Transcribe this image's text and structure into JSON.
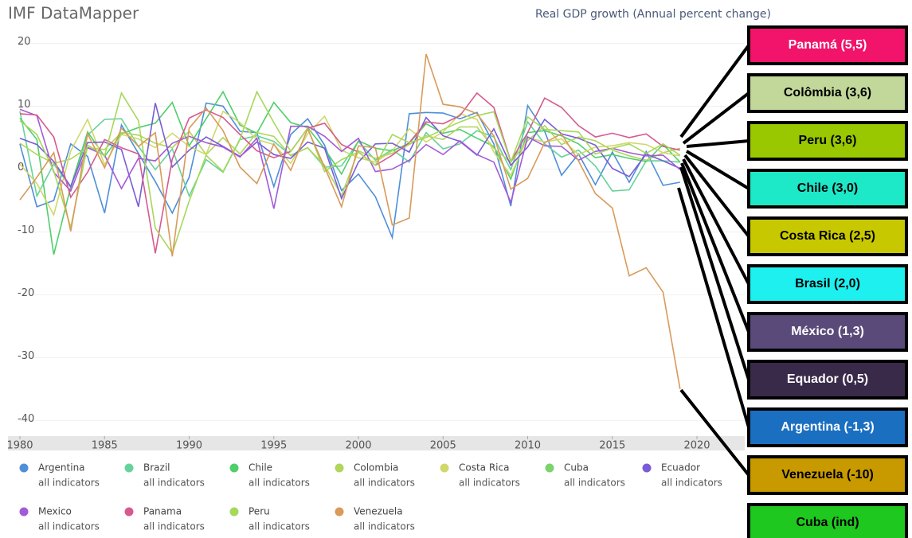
{
  "chart_data": {
    "type": "line",
    "title": "IMF DataMapper",
    "subtitle": "Real GDP growth (Annual percent change)",
    "legend_sublabel": "all indicators",
    "x": [
      1980,
      1981,
      1982,
      1983,
      1984,
      1985,
      1986,
      1987,
      1988,
      1989,
      1990,
      1991,
      1992,
      1993,
      1994,
      1995,
      1996,
      1997,
      1998,
      1999,
      2000,
      2001,
      2002,
      2003,
      2004,
      2005,
      2006,
      2007,
      2008,
      2009,
      2010,
      2011,
      2012,
      2013,
      2014,
      2015,
      2016,
      2017,
      2018,
      2019
    ],
    "xlim": [
      1980,
      2023
    ],
    "xticks": [
      1980,
      1985,
      1990,
      1995,
      2000,
      2005,
      2010,
      2015,
      2020
    ],
    "ylim": [
      -42.5,
      21.2
    ],
    "yticks": [
      20,
      10,
      0,
      -10,
      -20,
      -30,
      -40
    ],
    "grid": true,
    "series": [
      {
        "name": "Argentina",
        "color": "#4e8fd9",
        "values": [
          4,
          -6,
          -5,
          4,
          2,
          -7,
          7,
          2.5,
          -2,
          -7,
          -1.3,
          10.5,
          10,
          6,
          5.8,
          -2.8,
          5.5,
          8,
          3.8,
          -3.4,
          -0.8,
          -4.4,
          -10.9,
          8.8,
          9,
          8.9,
          8,
          9,
          4,
          -5.9,
          10.1,
          6,
          -1,
          2.4,
          -2.5,
          2.7,
          -2.1,
          2.8,
          -2.6,
          -2.1
        ]
      },
      {
        "name": "Brazil",
        "color": "#67d39a",
        "values": [
          9.2,
          -4.3,
          0.8,
          -2.9,
          5.4,
          7.9,
          8,
          3.6,
          -0.1,
          3.2,
          -4.3,
          1.5,
          -0.5,
          4.7,
          5.3,
          4.4,
          2.2,
          3.4,
          0.3,
          0.5,
          4.4,
          1.4,
          3.1,
          1.1,
          5.8,
          3.2,
          4,
          6.1,
          5.1,
          -0.1,
          7.5,
          4,
          1.9,
          3,
          0.5,
          -3.5,
          -3.3,
          1.3,
          1.3,
          1.1
        ]
      },
      {
        "name": "Chile",
        "color": "#4fcf6a",
        "values": [
          8.1,
          4.7,
          -13.6,
          -2.8,
          5.9,
          2,
          5.6,
          6.6,
          7.3,
          10.6,
          3.7,
          8,
          12.3,
          7,
          5.7,
          10.6,
          7.4,
          6.6,
          3.2,
          -0.8,
          4.5,
          3.3,
          2.9,
          4.1,
          7.2,
          5.7,
          6.3,
          4.9,
          3.6,
          -1.6,
          5.8,
          6.1,
          5.3,
          4,
          1.8,
          2.3,
          1.7,
          1.2,
          3.9,
          1.1
        ]
      },
      {
        "name": "Colombia",
        "color": "#b0d65a",
        "values": [
          4.1,
          2.3,
          0.9,
          1.6,
          3.4,
          3.1,
          5.8,
          5.4,
          4.1,
          3.4,
          6,
          2.3,
          5,
          2.4,
          5.8,
          5.2,
          2.1,
          3.4,
          0.6,
          -4.2,
          2.9,
          1.7,
          2.5,
          3.9,
          5.3,
          4.7,
          6.7,
          6.7,
          3.3,
          1.1,
          4.5,
          6.9,
          3.9,
          5.1,
          4.5,
          3,
          2.1,
          1.4,
          2.6,
          3.3
        ]
      },
      {
        "name": "Costa Rica",
        "color": "#d0d86a",
        "values": [
          0.8,
          -2.3,
          -7.3,
          2.9,
          7.9,
          0.7,
          5.5,
          4.8,
          3.4,
          5.7,
          3.6,
          2.3,
          9.2,
          7.4,
          4.7,
          3.9,
          0.9,
          5.6,
          8.4,
          3,
          1.8,
          1.1,
          2.9,
          6.4,
          4.3,
          5.9,
          8.8,
          7.9,
          2.7,
          -1,
          5,
          4.3,
          4.8,
          2.3,
          3.5,
          3.7,
          4.2,
          3.9,
          2.6,
          2.1
        ]
      },
      {
        "name": "Cuba",
        "color": "#7cd36b",
        "values": [
          null,
          null,
          null,
          null,
          null,
          null,
          null,
          null,
          null,
          null,
          null,
          null,
          null,
          null,
          null,
          null,
          null,
          null,
          null,
          null,
          null,
          null,
          null,
          null,
          null,
          null,
          null,
          null,
          null,
          null,
          null,
          null,
          null,
          null,
          null,
          null,
          null,
          null,
          null,
          null
        ]
      },
      {
        "name": "Ecuador",
        "color": "#7a5cd6",
        "values": [
          4.9,
          3.9,
          1.2,
          -2.8,
          4.2,
          4.3,
          3.1,
          -6,
          10.5,
          0.3,
          3,
          5.1,
          3.6,
          2,
          4.3,
          2.3,
          1.7,
          4.3,
          3.3,
          -4.7,
          1.1,
          4,
          4.1,
          2.7,
          8.2,
          5.3,
          4.4,
          2.2,
          6.4,
          0.6,
          3.5,
          7.9,
          5.6,
          4.9,
          3.8,
          0.1,
          -1.2,
          2.4,
          1.3,
          0.1
        ]
      },
      {
        "name": "Mexico",
        "color": "#a35ad8",
        "values": [
          9.5,
          8.5,
          -0.5,
          -3.5,
          3.4,
          2.2,
          -3.1,
          1.7,
          1.3,
          4.1,
          5.2,
          4.2,
          3.5,
          1.9,
          4.9,
          -6.3,
          6.8,
          6.8,
          5.2,
          2.8,
          4.9,
          -0.4,
          0,
          1.4,
          3.9,
          2.3,
          4.5,
          2.3,
          1.1,
          -5.3,
          5.1,
          3.7,
          3.6,
          1.4,
          2.8,
          3.3,
          2.6,
          2.1,
          2.2,
          -0.1
        ]
      },
      {
        "name": "Panama",
        "color": "#d65a8f",
        "values": [
          8.8,
          8.6,
          5.1,
          -4.5,
          -0.5,
          4.7,
          3.4,
          2.4,
          -13.4,
          1.6,
          8.1,
          9.4,
          8.2,
          5.5,
          2.9,
          1.8,
          2.8,
          6.5,
          7.3,
          3.9,
          2.7,
          0.6,
          2.2,
          4.2,
          7.5,
          7.2,
          8.5,
          12.1,
          9.8,
          1.2,
          5.8,
          11.3,
          9.8,
          6.9,
          5.1,
          5.7,
          5,
          5.6,
          3.6,
          3
        ]
      },
      {
        "name": "Peru",
        "color": "#a6d85a",
        "values": [
          7.7,
          5.5,
          -0.3,
          -9.3,
          3.8,
          2.1,
          12.1,
          7.7,
          -9.4,
          -13.4,
          -5.1,
          2.2,
          -0.4,
          4.8,
          12.3,
          7.4,
          2.8,
          6.5,
          -0.4,
          1.5,
          2.7,
          0.6,
          5.5,
          4.2,
          5,
          6.3,
          7.5,
          8.5,
          9.1,
          1.1,
          8.3,
          6.3,
          6.1,
          5.9,
          2.4,
          3.3,
          4,
          2.5,
          4,
          2.2
        ]
      },
      {
        "name": "Venezuela",
        "color": "#d99a5a",
        "values": [
          -4.9,
          -1.3,
          2.6,
          -9.9,
          5.6,
          0.2,
          6.5,
          3.6,
          5.8,
          -13.9,
          6.5,
          9.7,
          6.1,
          0.3,
          -2.3,
          4,
          -0.2,
          6.4,
          0.3,
          -6,
          3.7,
          3.4,
          -8.9,
          -7.8,
          18.3,
          10.3,
          9.9,
          8.8,
          5.3,
          -3.2,
          -1.5,
          4.2,
          5.6,
          1.3,
          -3.9,
          -6.2,
          -17,
          -15.7,
          -19.6,
          -35
        ]
      }
    ],
    "annotations": [
      {
        "text": "Panamá (5,5)",
        "color": "#f2136a",
        "text_color": "#ffffff"
      },
      {
        "text": "Colômbia (3,6)",
        "color": "#c2d89a",
        "text_color": "#000000"
      },
      {
        "text": "Peru (3,6)",
        "color": "#9ac800",
        "text_color": "#000000"
      },
      {
        "text": "Chile (3,0)",
        "color": "#1de8c8",
        "text_color": "#000000"
      },
      {
        "text": "Costa Rica (2,5)",
        "color": "#c8c800",
        "text_color": "#000000"
      },
      {
        "text": "Brasil (2,0)",
        "color": "#1ef0f0",
        "text_color": "#000000"
      },
      {
        "text": "México (1,3)",
        "color": "#5a4a7a",
        "text_color": "#ffffff"
      },
      {
        "text": "Equador (0,5)",
        "color": "#3a2a4a",
        "text_color": "#ffffff"
      },
      {
        "text": "Argentina (-1,3)",
        "color": "#1a6fc0",
        "text_color": "#ffffff"
      },
      {
        "text": "Venezuela (-10)",
        "color": "#c89a00",
        "text_color": "#000000"
      },
      {
        "text": "Cuba (ind)",
        "color": "#1ec81e",
        "text_color": "#000000"
      }
    ]
  }
}
